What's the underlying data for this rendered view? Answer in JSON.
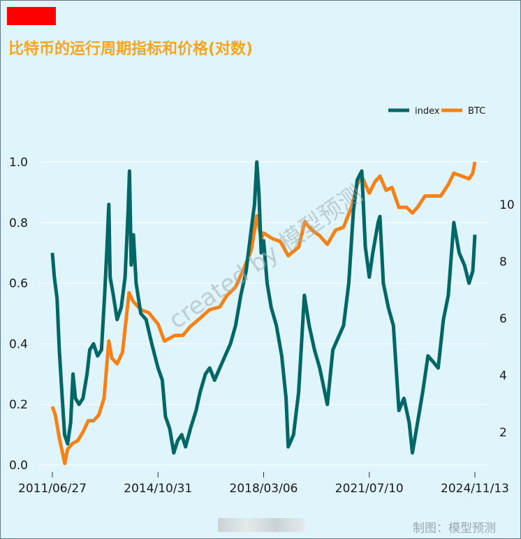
{
  "title": "比特币的运行周期指标和价格(对数)",
  "watermark": "created by 模型预测",
  "footer": "制图：模型预测",
  "colors": {
    "index": "#006666",
    "btc": "#f48217",
    "grid": "#ffffff",
    "background": "#dff4fb",
    "title": "#f6a51e"
  },
  "chart_data": {
    "type": "line",
    "title": "比特币的运行周期指标和价格(对数)",
    "legend": {
      "position": "top-right",
      "entries": [
        "index",
        "BTC"
      ]
    },
    "x_tick_labels": [
      "2011/06/27",
      "2014/10/31",
      "2018/03/06",
      "2021/07/10",
      "2024/11/13"
    ],
    "x_range": [
      "2011/06/27",
      "2024/11/13"
    ],
    "y_left": {
      "range": [
        0.0,
        1.0
      ],
      "ticks": [
        "0.0",
        "0.2",
        "0.4",
        "0.6",
        "0.8",
        "1.0"
      ]
    },
    "y_right": {
      "range": [
        0.6,
        11.2
      ],
      "ticks": [
        "2",
        "4",
        "6",
        "8",
        "10"
      ]
    },
    "grid": "horizontal",
    "series": [
      {
        "name": "index",
        "axis": "left",
        "points": [
          [
            "2011/06/27",
            0.7
          ],
          [
            "2011/07/20",
            0.62
          ],
          [
            "2011/08/20",
            0.55
          ],
          [
            "2011/09/15",
            0.38
          ],
          [
            "2011/10/15",
            0.24
          ],
          [
            "2011/11/15",
            0.1
          ],
          [
            "2011/12/20",
            0.07
          ],
          [
            "2012/01/25",
            0.14
          ],
          [
            "2012/02/20",
            0.3
          ],
          [
            "2012/03/20",
            0.22
          ],
          [
            "2012/05/01",
            0.2
          ],
          [
            "2012/06/15",
            0.22
          ],
          [
            "2012/08/01",
            0.3
          ],
          [
            "2012/09/01",
            0.38
          ],
          [
            "2012/10/15",
            0.4
          ],
          [
            "2012/12/01",
            0.36
          ],
          [
            "2013/01/15",
            0.38
          ],
          [
            "2013/02/20",
            0.56
          ],
          [
            "2013/03/20",
            0.72
          ],
          [
            "2013/04/10",
            0.86
          ],
          [
            "2013/04/25",
            0.62
          ],
          [
            "2013/06/01",
            0.56
          ],
          [
            "2013/07/15",
            0.48
          ],
          [
            "2013/09/01",
            0.52
          ],
          [
            "2013/10/15",
            0.62
          ],
          [
            "2013/11/20",
            0.84
          ],
          [
            "2013/12/05",
            0.97
          ],
          [
            "2013/12/25",
            0.66
          ],
          [
            "2014/01/20",
            0.76
          ],
          [
            "2014/02/20",
            0.6
          ],
          [
            "2014/04/15",
            0.5
          ],
          [
            "2014/06/15",
            0.48
          ],
          [
            "2014/08/20",
            0.4
          ],
          [
            "2014/10/31",
            0.32
          ],
          [
            "2014/12/20",
            0.28
          ],
          [
            "2015/01/25",
            0.16
          ],
          [
            "2015/03/15",
            0.12
          ],
          [
            "2015/05/01",
            0.04
          ],
          [
            "2015/06/15",
            0.08
          ],
          [
            "2015/08/01",
            0.1
          ],
          [
            "2015/09/15",
            0.06
          ],
          [
            "2015/11/10",
            0.12
          ],
          [
            "2016/01/15",
            0.18
          ],
          [
            "2016/03/01",
            0.24
          ],
          [
            "2016/05/01",
            0.3
          ],
          [
            "2016/06/20",
            0.32
          ],
          [
            "2016/08/15",
            0.28
          ],
          [
            "2016/10/15",
            0.32
          ],
          [
            "2016/12/15",
            0.36
          ],
          [
            "2017/02/15",
            0.4
          ],
          [
            "2017/04/15",
            0.46
          ],
          [
            "2017/06/15",
            0.56
          ],
          [
            "2017/08/15",
            0.64
          ],
          [
            "2017/10/15",
            0.78
          ],
          [
            "2017/11/20",
            0.86
          ],
          [
            "2017/12/17",
            1.0
          ],
          [
            "2018/01/10",
            0.9
          ],
          [
            "2018/02/06",
            0.7
          ],
          [
            "2018/03/06",
            0.74
          ],
          [
            "2018/04/15",
            0.6
          ],
          [
            "2018/06/01",
            0.52
          ],
          [
            "2018/08/01",
            0.46
          ],
          [
            "2018/10/01",
            0.36
          ],
          [
            "2018/11/20",
            0.22
          ],
          [
            "2018/12/15",
            0.06
          ],
          [
            "2019/02/15",
            0.1
          ],
          [
            "2019/04/15",
            0.24
          ],
          [
            "2019/06/20",
            0.56
          ],
          [
            "2019/08/15",
            0.46
          ],
          [
            "2019/10/15",
            0.38
          ],
          [
            "2019/12/15",
            0.32
          ],
          [
            "2020/03/12",
            0.2
          ],
          [
            "2020/05/15",
            0.38
          ],
          [
            "2020/07/15",
            0.42
          ],
          [
            "2020/09/15",
            0.46
          ],
          [
            "2020/11/15",
            0.6
          ],
          [
            "2021/01/08",
            0.84
          ],
          [
            "2021/02/20",
            0.94
          ],
          [
            "2021/04/14",
            0.97
          ],
          [
            "2021/05/25",
            0.72
          ],
          [
            "2021/07/10",
            0.62
          ],
          [
            "2021/08/20",
            0.7
          ],
          [
            "2021/10/20",
            0.8
          ],
          [
            "2021/11/10",
            0.82
          ],
          [
            "2021/12/20",
            0.6
          ],
          [
            "2022/02/15",
            0.52
          ],
          [
            "2022/04/15",
            0.46
          ],
          [
            "2022/06/18",
            0.18
          ],
          [
            "2022/08/15",
            0.22
          ],
          [
            "2022/10/15",
            0.14
          ],
          [
            "2022/11/21",
            0.04
          ],
          [
            "2023/01/20",
            0.14
          ],
          [
            "2023/03/20",
            0.24
          ],
          [
            "2023/05/20",
            0.36
          ],
          [
            "2023/07/20",
            0.34
          ],
          [
            "2023/09/15",
            0.32
          ],
          [
            "2023/11/15",
            0.48
          ],
          [
            "2024/01/10",
            0.56
          ],
          [
            "2024/03/14",
            0.8
          ],
          [
            "2024/05/15",
            0.7
          ],
          [
            "2024/07/15",
            0.66
          ],
          [
            "2024/09/06",
            0.6
          ],
          [
            "2024/10/20",
            0.64
          ],
          [
            "2024/11/13",
            0.76
          ]
        ]
      },
      {
        "name": "BTC",
        "axis": "right",
        "points": [
          [
            "2011/06/27",
            2.9
          ],
          [
            "2011/08/01",
            2.6
          ],
          [
            "2011/09/15",
            1.8
          ],
          [
            "2011/11/18",
            0.9
          ],
          [
            "2011/12/20",
            1.4
          ],
          [
            "2012/02/15",
            1.6
          ],
          [
            "2012/04/15",
            1.7
          ],
          [
            "2012/06/15",
            2.0
          ],
          [
            "2012/08/15",
            2.4
          ],
          [
            "2012/10/15",
            2.4
          ],
          [
            "2012/12/15",
            2.6
          ],
          [
            "2013/02/15",
            3.2
          ],
          [
            "2013/04/10",
            5.2
          ],
          [
            "2013/05/15",
            4.6
          ],
          [
            "2013/07/15",
            4.4
          ],
          [
            "2013/09/15",
            4.8
          ],
          [
            "2013/11/30",
            6.9
          ],
          [
            "2014/01/15",
            6.6
          ],
          [
            "2014/04/15",
            6.3
          ],
          [
            "2014/07/15",
            6.2
          ],
          [
            "2014/10/31",
            5.8
          ],
          [
            "2015/01/14",
            5.2
          ],
          [
            "2015/05/15",
            5.4
          ],
          [
            "2015/08/15",
            5.4
          ],
          [
            "2015/11/05",
            5.7
          ],
          [
            "2016/03/01",
            6.0
          ],
          [
            "2016/06/17",
            6.3
          ],
          [
            "2016/10/15",
            6.4
          ],
          [
            "2017/01/05",
            6.8
          ],
          [
            "2017/04/15",
            7.1
          ],
          [
            "2017/07/15",
            7.7
          ],
          [
            "2017/10/15",
            8.4
          ],
          [
            "2017/12/17",
            9.6
          ],
          [
            "2018/02/06",
            8.8
          ],
          [
            "2018/03/06",
            9.0
          ],
          [
            "2018/06/15",
            8.8
          ],
          [
            "2018/09/15",
            8.7
          ],
          [
            "2018/12/15",
            8.2
          ],
          [
            "2019/04/15",
            8.5
          ],
          [
            "2019/06/26",
            9.4
          ],
          [
            "2019/09/15",
            9.1
          ],
          [
            "2019/12/15",
            8.9
          ],
          [
            "2020/03/12",
            8.6
          ],
          [
            "2020/06/15",
            9.1
          ],
          [
            "2020/09/15",
            9.2
          ],
          [
            "2020/12/15",
            9.9
          ],
          [
            "2021/02/20",
            10.7
          ],
          [
            "2021/04/14",
            11.0
          ],
          [
            "2021/07/10",
            10.4
          ],
          [
            "2021/09/15",
            10.8
          ],
          [
            "2021/11/10",
            11.0
          ],
          [
            "2022/01/20",
            10.5
          ],
          [
            "2022/03/30",
            10.6
          ],
          [
            "2022/06/18",
            9.9
          ],
          [
            "2022/09/15",
            9.9
          ],
          [
            "2022/11/21",
            9.7
          ],
          [
            "2023/01/20",
            9.9
          ],
          [
            "2023/04/15",
            10.3
          ],
          [
            "2023/07/15",
            10.3
          ],
          [
            "2023/10/15",
            10.3
          ],
          [
            "2024/01/10",
            10.7
          ],
          [
            "2024/03/14",
            11.1
          ],
          [
            "2024/06/15",
            11.0
          ],
          [
            "2024/09/06",
            10.9
          ],
          [
            "2024/10/20",
            11.1
          ],
          [
            "2024/11/13",
            11.5
          ]
        ]
      }
    ]
  }
}
